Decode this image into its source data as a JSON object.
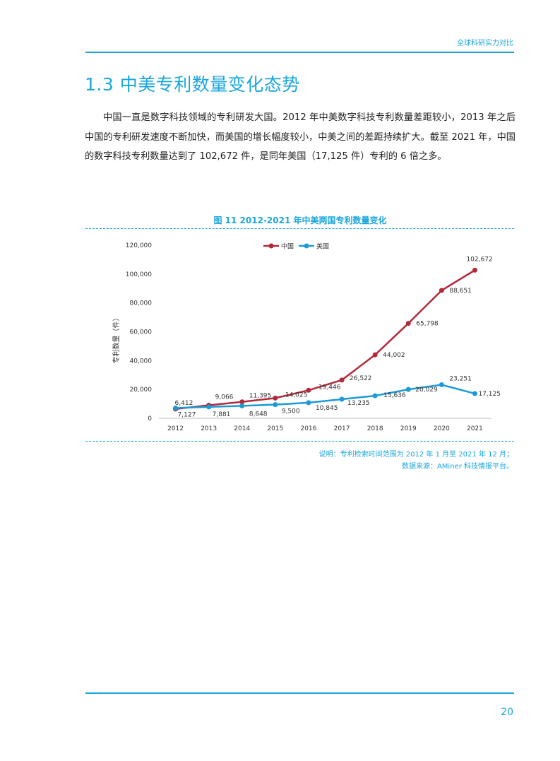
{
  "header": {
    "title": "全球科研实力对比"
  },
  "section": {
    "title": "1.3 中美专利数量变化态势",
    "paragraph": "中国一直是数字科技领域的专利研发大国。2012 年中美数字科技专利数量差距较小，2013 年之后中国的专利研发速度不断加快，而美国的增长幅度较小，中美之间的差距持续扩大。截至 2021 年，中国的数字科技专利数量达到了 102,672 件，是同年美国（17,125 件）专利的 6 倍之多。"
  },
  "figure": {
    "caption": "图 11  2012-2021 年中美两国专利数量变化",
    "note_line1": "说明：专利检索时间范围为 2012 年 1 月至 2021 年 12 月；",
    "note_line2": "数据来源：AMiner 科技情报平台。"
  },
  "chart_data": {
    "type": "line",
    "x": [
      "2012",
      "2013",
      "2014",
      "2015",
      "2016",
      "2017",
      "2018",
      "2019",
      "2020",
      "2021"
    ],
    "series": [
      {
        "name": "中国",
        "color": "#b22a3a",
        "values": [
          6412,
          9066,
          11395,
          14025,
          19446,
          26522,
          44002,
          65798,
          88651,
          102672
        ],
        "labels": [
          "6,412",
          "9,066",
          "11,395",
          "14,025",
          "19,446",
          "26,522",
          "44,002",
          "65,798",
          "88,651",
          "102,672"
        ]
      },
      {
        "name": "美国",
        "color": "#1d9ad6",
        "values": [
          7127,
          7881,
          8648,
          9500,
          10845,
          13235,
          15636,
          20029,
          23251,
          17125
        ],
        "labels": [
          "7,127",
          "7,881",
          "8,648",
          "9,500",
          "10,845",
          "13,235",
          "15,636",
          "20,029",
          "23,251",
          "17,125"
        ]
      }
    ],
    "ylabel": "专利数量（件）",
    "ylim": [
      0,
      120000
    ],
    "yticks": [
      "0",
      "20,000",
      "40,000",
      "60,000",
      "80,000",
      "100,000",
      "120,000"
    ],
    "legend_position": "top-center",
    "grid": false
  },
  "footer": {
    "page_number": "20"
  }
}
